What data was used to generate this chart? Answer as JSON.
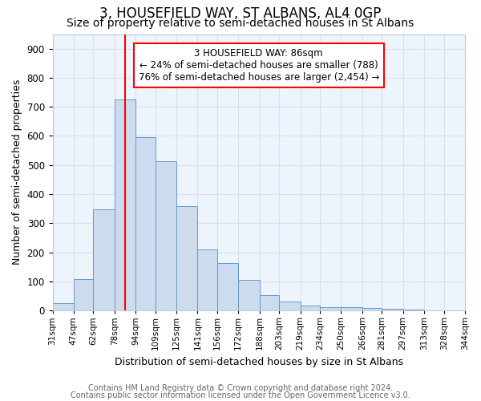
{
  "title": "3, HOUSEFIELD WAY, ST ALBANS, AL4 0GP",
  "subtitle": "Size of property relative to semi-detached houses in St Albans",
  "xlabel": "Distribution of semi-detached houses by size in St Albans",
  "ylabel": "Number of semi-detached properties",
  "bin_edges": [
    31,
    47,
    62,
    78,
    94,
    109,
    125,
    141,
    156,
    172,
    188,
    203,
    219,
    234,
    250,
    266,
    281,
    297,
    313,
    328,
    344
  ],
  "bar_heights": [
    25,
    107,
    347,
    725,
    596,
    512,
    360,
    210,
    163,
    105,
    52,
    31,
    16,
    10,
    10,
    9,
    7,
    4,
    0,
    0
  ],
  "bar_color": "#ccdcee",
  "bar_edge_color": "#6699cc",
  "grid_color": "#d5e0f0",
  "bg_color": "#eef4fb",
  "vline_x": 86,
  "vline_color": "red",
  "annotation_text": "3 HOUSEFIELD WAY: 86sqm\n← 24% of semi-detached houses are smaller (788)\n76% of semi-detached houses are larger (2,454) →",
  "annotation_box_color": "red",
  "ylim": [
    0,
    950
  ],
  "yticks": [
    0,
    100,
    200,
    300,
    400,
    500,
    600,
    700,
    800,
    900
  ],
  "footer_line1": "Contains HM Land Registry data © Crown copyright and database right 2024.",
  "footer_line2": "Contains public sector information licensed under the Open Government Licence v3.0.",
  "title_fontsize": 12,
  "subtitle_fontsize": 10,
  "tick_label_fontsize": 7.5,
  "axis_label_fontsize": 9,
  "footer_fontsize": 7
}
